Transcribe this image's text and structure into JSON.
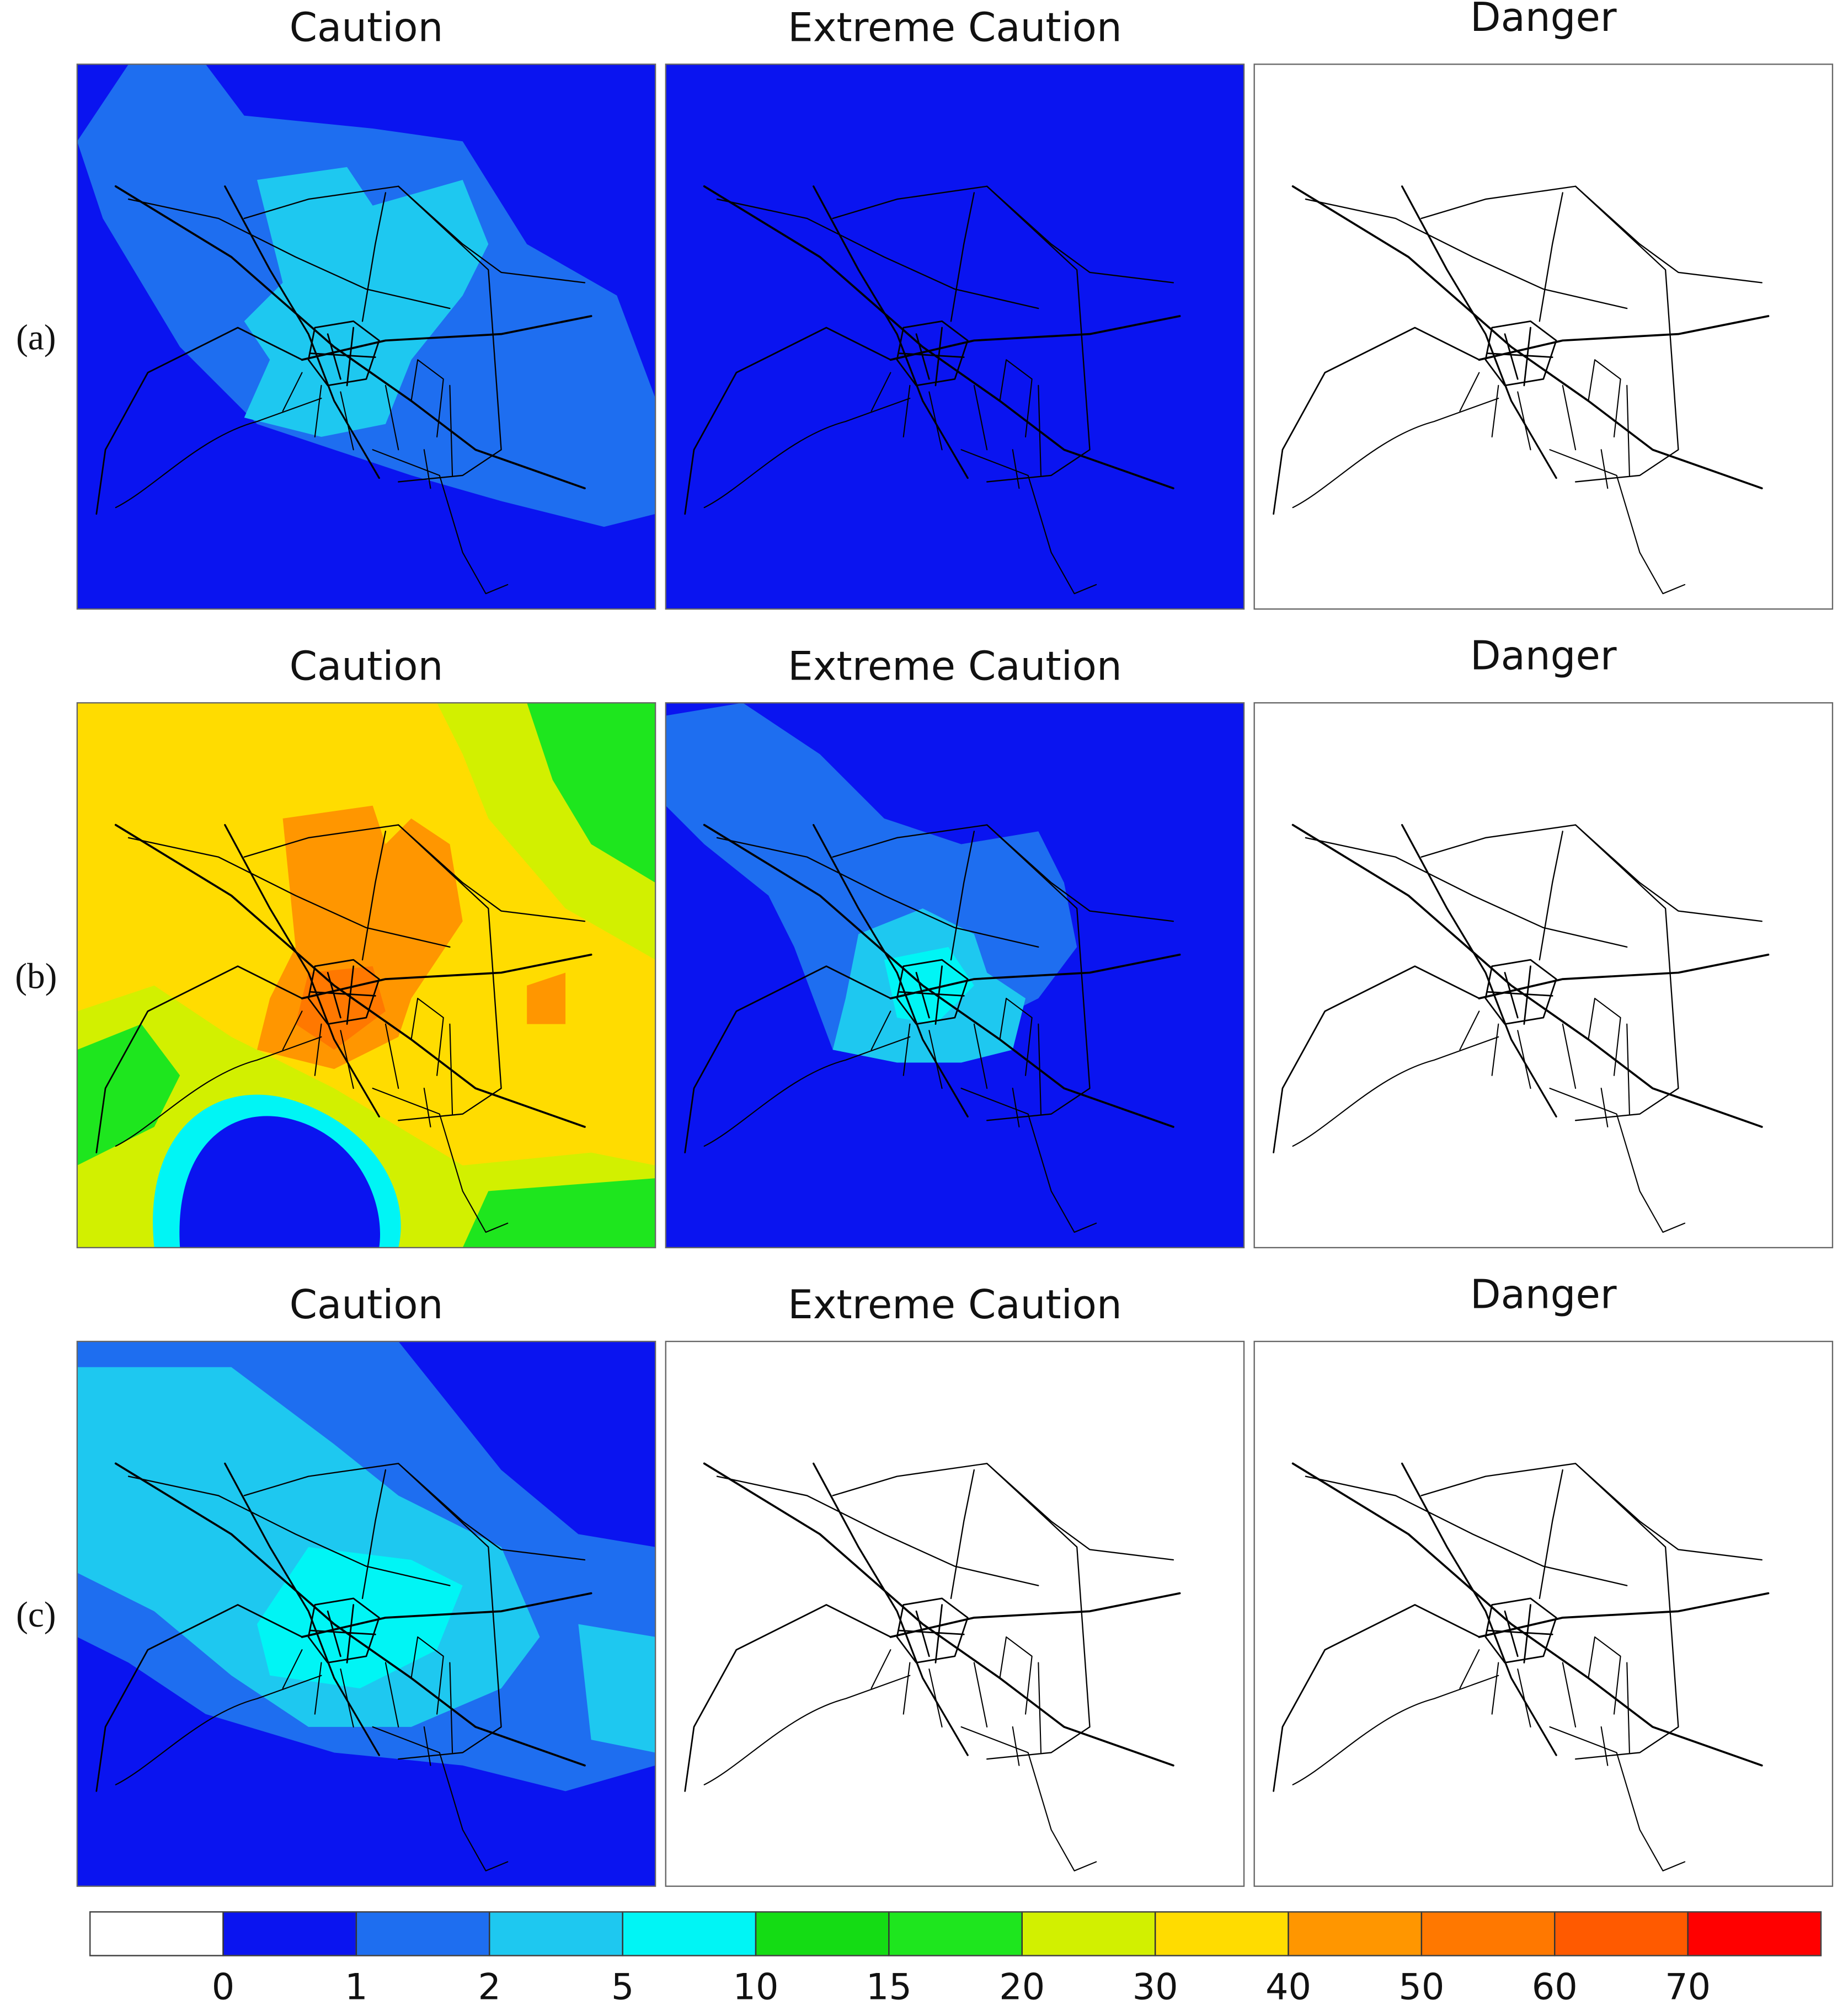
{
  "panels": [
    {
      "label": "(a)",
      "maps": [
        {
          "title": "Caution"
        },
        {
          "title": "Extreme Caution"
        },
        {
          "title": "Danger"
        }
      ]
    },
    {
      "label": "(b)",
      "maps": [
        {
          "title": "Caution"
        },
        {
          "title": "Extreme Caution"
        },
        {
          "title": "Danger"
        }
      ]
    },
    {
      "label": "(c)",
      "maps": [
        {
          "title": "Caution"
        },
        {
          "title": "Extreme Caution"
        },
        {
          "title": "Danger"
        }
      ]
    }
  ],
  "colorbar": {
    "colors": [
      "#ffffff",
      "#0a14f0",
      "#1e6ef0",
      "#1ec8f0",
      "#00f5f5",
      "#14dc14",
      "#1ee61e",
      "#d2f000",
      "#ffdc00",
      "#ff9600",
      "#ff7800",
      "#ff5a00",
      "#ff0000"
    ],
    "ticks": [
      0,
      1,
      2,
      5,
      10,
      15,
      20,
      30,
      40,
      50,
      60,
      70
    ]
  }
}
